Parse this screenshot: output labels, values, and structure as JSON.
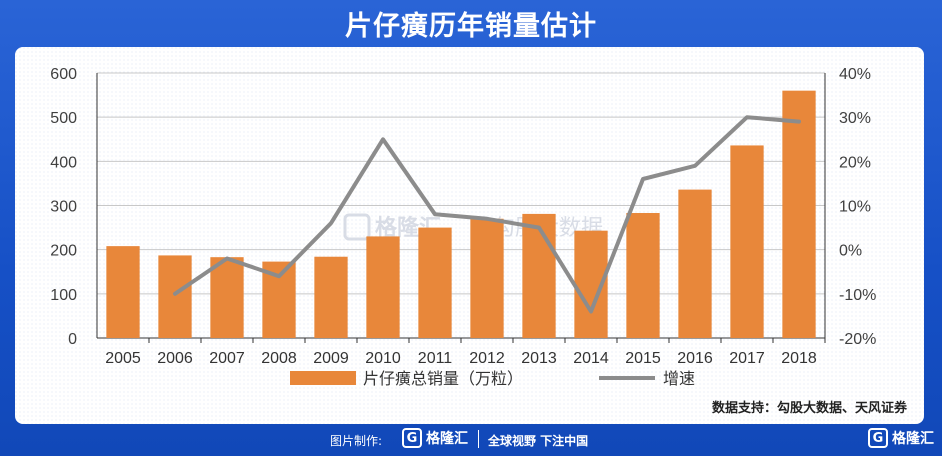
{
  "title": "片仔癀历年销量估计",
  "footer": {
    "made_by": "图片制作:",
    "brand": "格隆汇",
    "slogan": "全球视野 下注中国",
    "corner_brand": "格隆汇"
  },
  "watermark": {
    "left_text": "格隆汇",
    "right_text": "勾股大数据"
  },
  "colors": {
    "bar": "#E8873A",
    "line": "#8C8C8C",
    "background": "#1652c8"
  },
  "chart_data": {
    "type": "bar",
    "title": "",
    "source": "数据支持：勾股大数据、天风证券",
    "categories": [
      "2005",
      "2006",
      "2007",
      "2008",
      "2009",
      "2010",
      "2011",
      "2012",
      "2013",
      "2014",
      "2015",
      "2016",
      "2017",
      "2018"
    ],
    "series": [
      {
        "name": "片仔癀总销量（万粒）",
        "type": "bar",
        "axis": "left",
        "values": [
          208,
          187,
          183,
          173,
          184,
          230,
          250,
          270,
          281,
          243,
          283,
          336,
          436,
          560
        ]
      },
      {
        "name": "增速",
        "type": "line",
        "axis": "right",
        "values": [
          null,
          -10,
          -2,
          -6,
          6,
          25,
          8,
          7,
          5,
          -14,
          16,
          19,
          30,
          29
        ]
      }
    ],
    "y_left": {
      "min": 0,
      "max": 600,
      "ticks": [
        "0",
        "100",
        "200",
        "300",
        "400",
        "500",
        "600"
      ]
    },
    "y_right": {
      "min": -20,
      "max": 40,
      "ticks": [
        "-20%",
        "-10%",
        "0%",
        "10%",
        "20%",
        "30%",
        "40%"
      ]
    },
    "legend_position": "bottom",
    "grid": true
  }
}
